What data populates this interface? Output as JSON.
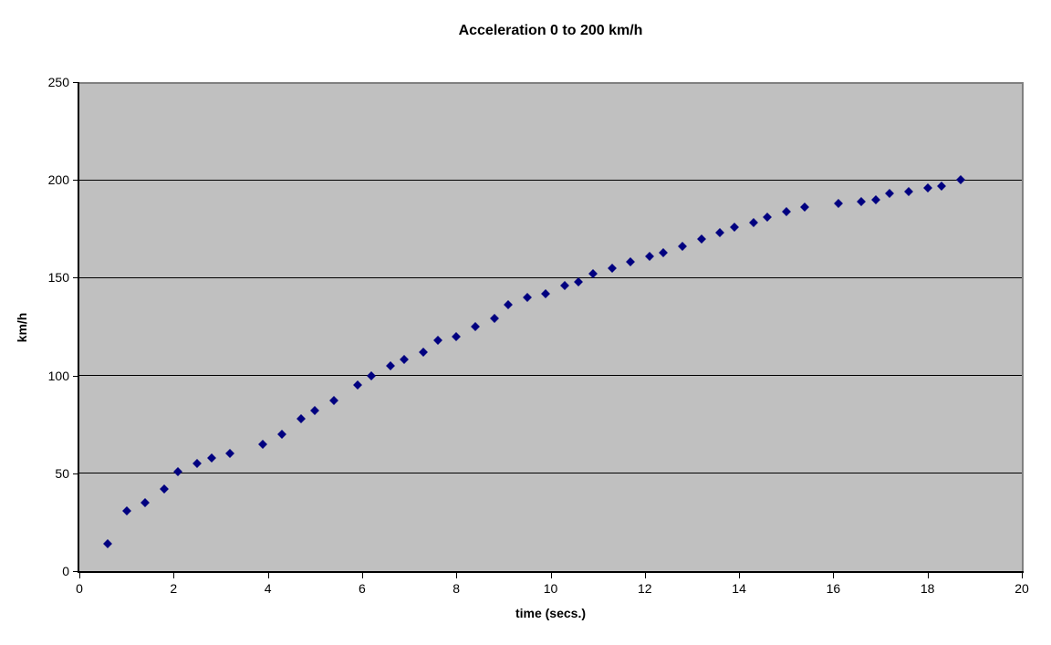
{
  "chart_data": {
    "type": "scatter",
    "title": "Acceleration 0 to 200 km/h",
    "xlabel": "time (secs.)",
    "ylabel": "km/h",
    "xlim": [
      0,
      20
    ],
    "ylim": [
      0,
      250
    ],
    "x_ticks": [
      0,
      2,
      4,
      6,
      8,
      10,
      12,
      14,
      16,
      18,
      20
    ],
    "y_ticks": [
      0,
      50,
      100,
      150,
      200,
      250
    ],
    "grid": "horizontal-only",
    "legend": "none",
    "marker": "diamond",
    "colors": {
      "marker": "#000080",
      "plot_background": "#c0c0c0",
      "gridline": "#000000",
      "plot_border": "#808080",
      "axis": "#000000",
      "page_background": "#ffffff"
    },
    "points": [
      [
        0.6,
        14
      ],
      [
        1.0,
        31
      ],
      [
        1.4,
        35
      ],
      [
        1.8,
        42
      ],
      [
        2.1,
        51
      ],
      [
        2.5,
        55
      ],
      [
        2.8,
        58
      ],
      [
        3.2,
        60
      ],
      [
        3.9,
        65
      ],
      [
        4.3,
        70
      ],
      [
        4.7,
        78
      ],
      [
        5.0,
        82
      ],
      [
        5.4,
        87
      ],
      [
        5.9,
        95
      ],
      [
        6.2,
        100
      ],
      [
        6.6,
        105
      ],
      [
        6.9,
        108
      ],
      [
        7.3,
        112
      ],
      [
        7.6,
        118
      ],
      [
        8.0,
        120
      ],
      [
        8.4,
        125
      ],
      [
        8.8,
        129
      ],
      [
        9.1,
        136
      ],
      [
        9.5,
        140
      ],
      [
        9.9,
        142
      ],
      [
        10.3,
        146
      ],
      [
        10.6,
        148
      ],
      [
        10.9,
        152
      ],
      [
        11.3,
        155
      ],
      [
        11.7,
        158
      ],
      [
        12.1,
        161
      ],
      [
        12.4,
        163
      ],
      [
        12.8,
        166
      ],
      [
        13.2,
        170
      ],
      [
        13.6,
        173
      ],
      [
        13.9,
        176
      ],
      [
        14.3,
        178
      ],
      [
        14.6,
        181
      ],
      [
        15.0,
        184
      ],
      [
        15.4,
        186
      ],
      [
        16.1,
        188
      ],
      [
        16.6,
        189
      ],
      [
        16.9,
        190
      ],
      [
        17.2,
        193
      ],
      [
        17.6,
        194
      ],
      [
        18.0,
        196
      ],
      [
        18.3,
        197
      ],
      [
        18.7,
        200
      ]
    ]
  }
}
